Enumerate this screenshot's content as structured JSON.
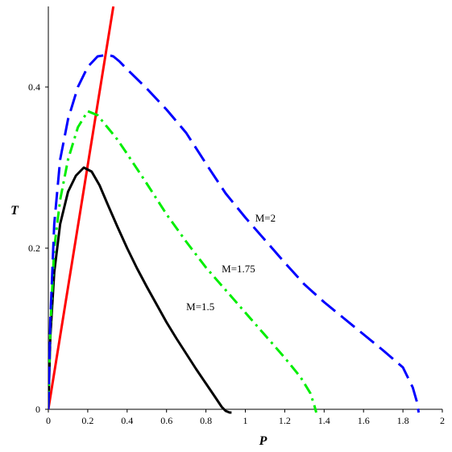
{
  "chart_data": {
    "type": "line",
    "title": "",
    "xlabel": "P",
    "ylabel": "T",
    "xlim": [
      0,
      2
    ],
    "ylim": [
      0,
      0.5
    ],
    "grid": false,
    "x_ticks": [
      0,
      0.2,
      0.4,
      0.6,
      0.8,
      1,
      1.2,
      1.4,
      1.6,
      1.8,
      2
    ],
    "x_tick_labels": [
      "0",
      "0.2",
      "0.4",
      "0.6",
      "0.8",
      "1",
      "1.2",
      "1.4",
      "1.6",
      "1.8",
      "2"
    ],
    "y_ticks": [
      0,
      0.2,
      0.4
    ],
    "y_tick_labels": [
      "0",
      "0.2",
      "0.4"
    ],
    "series": [
      {
        "name": "",
        "color": "#ff0000",
        "style": "solid",
        "x": [
          0,
          0.33
        ],
        "y": [
          0,
          0.5
        ]
      },
      {
        "name": "M=1.5",
        "color": "#000000",
        "style": "solid",
        "x": [
          0,
          0.01,
          0.03,
          0.06,
          0.1,
          0.14,
          0.18,
          0.22,
          0.26,
          0.3,
          0.35,
          0.4,
          0.45,
          0.5,
          0.55,
          0.6,
          0.65,
          0.7,
          0.75,
          0.8,
          0.85,
          0.88,
          0.9,
          0.92,
          0.93
        ],
        "y": [
          0,
          0.09,
          0.17,
          0.23,
          0.27,
          0.29,
          0.3,
          0.295,
          0.278,
          0.255,
          0.227,
          0.2,
          0.175,
          0.152,
          0.13,
          0.108,
          0.088,
          0.069,
          0.05,
          0.032,
          0.014,
          0.003,
          -0.002,
          -0.004,
          -0.004
        ]
      },
      {
        "name": "M=1.75",
        "color": "#00ee00",
        "style": "dashdot",
        "x": [
          0,
          0.01,
          0.03,
          0.06,
          0.1,
          0.15,
          0.2,
          0.25,
          0.3,
          0.35,
          0.4,
          0.5,
          0.6,
          0.7,
          0.8,
          0.9,
          1.0,
          1.1,
          1.2,
          1.28,
          1.33,
          1.35,
          1.36
        ],
        "y": [
          0,
          0.1,
          0.2,
          0.26,
          0.31,
          0.35,
          0.37,
          0.365,
          0.35,
          0.335,
          0.317,
          0.28,
          0.242,
          0.208,
          0.176,
          0.148,
          0.12,
          0.092,
          0.064,
          0.04,
          0.02,
          0.005,
          -0.004
        ]
      },
      {
        "name": "M=2",
        "color": "#0000ff",
        "style": "dashed",
        "x": [
          0,
          0.01,
          0.03,
          0.06,
          0.1,
          0.15,
          0.2,
          0.25,
          0.3,
          0.33,
          0.36,
          0.4,
          0.5,
          0.6,
          0.7,
          0.8,
          0.9,
          1.0,
          1.1,
          1.2,
          1.3,
          1.4,
          1.5,
          1.6,
          1.7,
          1.8,
          1.85,
          1.87,
          1.88
        ],
        "y": [
          0,
          0.11,
          0.23,
          0.31,
          0.36,
          0.4,
          0.425,
          0.438,
          0.44,
          0.438,
          0.432,
          0.422,
          0.398,
          0.372,
          0.343,
          0.305,
          0.268,
          0.238,
          0.21,
          0.182,
          0.155,
          0.133,
          0.113,
          0.093,
          0.073,
          0.052,
          0.027,
          0.01,
          -0.004
        ]
      }
    ],
    "annotations": [
      {
        "text": "M=2",
        "x": 1.05,
        "y": 0.233
      },
      {
        "text": "M=1.75",
        "x": 0.88,
        "y": 0.17
      },
      {
        "text": "M=1.5",
        "x": 0.7,
        "y": 0.123
      }
    ]
  }
}
